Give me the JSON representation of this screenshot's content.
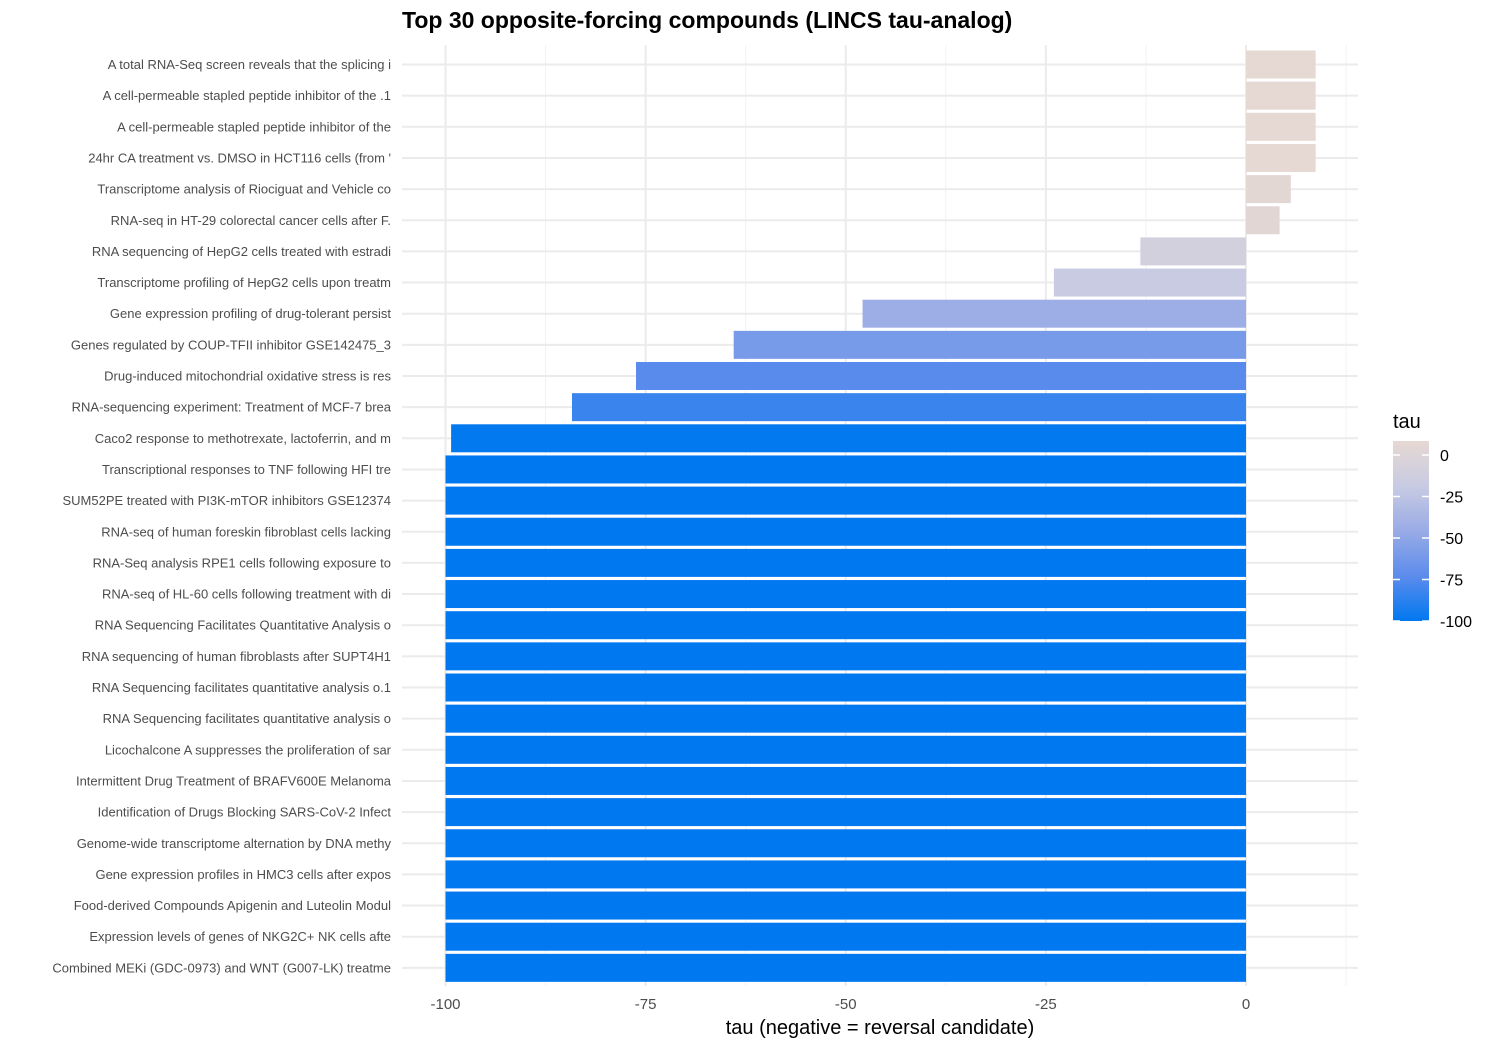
{
  "chart_data": {
    "type": "bar",
    "orientation": "horizontal",
    "title": "Top 30 opposite-forcing compounds (LINCS tau-analog)",
    "xlabel": "tau (negative = reversal candidate)",
    "ylabel": "",
    "xlim": [
      -105,
      14
    ],
    "xticks": [
      -100,
      -75,
      -50,
      -25,
      0
    ],
    "grid": true,
    "legend": {
      "title": "tau",
      "position": "right",
      "ticks": [
        0,
        -25,
        -50,
        -75,
        -100
      ],
      "color_low": "#0078f0",
      "color_high": "#e6d8d3"
    },
    "categories": [
      "A total RNA-Seq screen reveals that the splicing i",
      "A cell-permeable stapled peptide inhibitor of the .1",
      "A cell-permeable stapled peptide inhibitor of the ",
      "24hr CA treatment vs. DMSO in HCT116 cells (from '",
      "Transcriptome analysis of Riociguat and Vehicle co",
      "RNA-seq in HT-29 colorectal cancer cells after F. ",
      "RNA sequencing of HepG2 cells treated with estradi",
      "Transcriptome profiling of HepG2 cells upon treatm",
      "Gene expression profiling of drug-tolerant persist",
      "Genes regulated by COUP-TFII inhibitor GSE142475_3",
      "Drug-induced mitochondrial oxidative stress is res",
      "RNA-sequencing experiment: Treatment of MCF-7 brea",
      "Caco2 response to methotrexate, lactoferrin, and m",
      "Transcriptional responses to TNF following HFI tre",
      "SUM52PE treated with PI3K-mTOR inhibitors GSE12374",
      "RNA-seq of human foreskin fibroblast cells lacking",
      "RNA-Seq analysis RPE1 cells following exposure to ",
      "RNA-seq of HL-60 cells following treatment with di",
      "RNA Sequencing Facilitates Quantitative Analysis o",
      "RNA sequencing of human fibroblasts after SUPT4H1 ",
      "RNA Sequencing facilitates quantitative analysis o.1",
      "RNA Sequencing facilitates quantitative analysis o",
      "Licochalcone A suppresses the proliferation of sar",
      "Intermittent Drug Treatment of BRAFV600E Melanoma ",
      "Identification of Drugs Blocking SARS-CoV-2 Infect",
      "Genome-wide transcriptome alternation by DNA methy",
      "Gene expression profiles in HMC3 cells after expos",
      "Food-derived Compounds Apigenin and Luteolin Modul",
      "Expression levels of genes of NKG2C+ NK cells afte",
      "Combined MEKi (GDC-0973) and WNT (G007-LK) treatme"
    ],
    "values": [
      8.7,
      8.7,
      8.7,
      8.7,
      5.6,
      4.2,
      -13.2,
      -24.0,
      -47.9,
      -64.0,
      -76.2,
      -84.2,
      -99.3,
      -100,
      -100,
      -100,
      -100,
      -100,
      -100,
      -100,
      -100,
      -100,
      -100,
      -100,
      -100,
      -100,
      -100,
      -100,
      -100,
      -100
    ]
  }
}
